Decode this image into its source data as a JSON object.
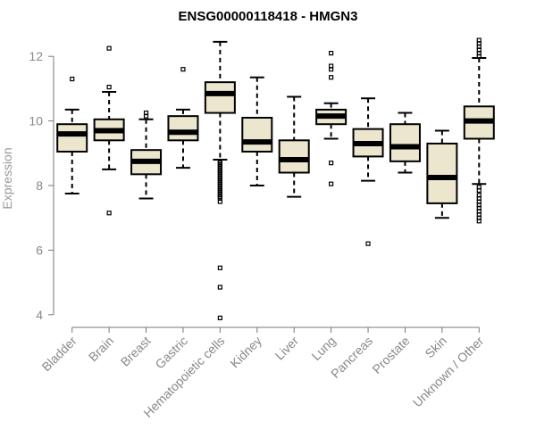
{
  "chart_data": {
    "type": "boxplot",
    "title": "ENSG00000118418 - HMGN3",
    "xlabel": "",
    "ylabel": "Expression",
    "ylim": [
      3.8,
      12.6
    ],
    "yticks": [
      4,
      6,
      8,
      10,
      12
    ],
    "colors": {
      "box_fill": "#ede6cf",
      "stroke": "#000000",
      "axis": "#777777",
      "tick_text": "#888888"
    },
    "categories": [
      "Bladder",
      "Brain",
      "Breast",
      "Gastric",
      "Hematopoietic cells",
      "Kidney",
      "Liver",
      "Lung",
      "Pancreas",
      "Prostate",
      "Skin",
      "Unknown / Other"
    ],
    "boxes": [
      {
        "name": "Bladder",
        "whisker_low": 7.75,
        "q1": 9.05,
        "median": 9.6,
        "q3": 9.9,
        "whisker_high": 10.35,
        "outliers": [
          11.3
        ]
      },
      {
        "name": "Brain",
        "whisker_low": 8.5,
        "q1": 9.4,
        "median": 9.7,
        "q3": 10.05,
        "whisker_high": 10.9,
        "outliers": [
          7.15,
          11.05,
          12.25
        ]
      },
      {
        "name": "Breast",
        "whisker_low": 7.6,
        "q1": 8.35,
        "median": 8.75,
        "q3": 9.1,
        "whisker_high": 10.05,
        "outliers": [
          10.15,
          10.25
        ]
      },
      {
        "name": "Gastric",
        "whisker_low": 8.55,
        "q1": 9.4,
        "median": 9.65,
        "q3": 10.15,
        "whisker_high": 10.35,
        "outliers": [
          11.6
        ]
      },
      {
        "name": "Hematopoietic cells",
        "whisker_low": 8.8,
        "q1": 10.25,
        "median": 10.85,
        "q3": 11.2,
        "whisker_high": 12.45,
        "outliers": [
          8.75,
          8.7,
          8.65,
          8.6,
          8.55,
          8.5,
          8.45,
          8.4,
          8.35,
          8.3,
          8.25,
          8.2,
          8.15,
          8.1,
          8.05,
          8.0,
          7.95,
          7.9,
          7.85,
          7.8,
          7.75,
          7.7,
          7.65,
          7.6,
          7.5,
          5.45,
          4.85,
          3.9
        ]
      },
      {
        "name": "Kidney",
        "whisker_low": 8.0,
        "q1": 9.05,
        "median": 9.35,
        "q3": 10.1,
        "whisker_high": 11.35,
        "outliers": []
      },
      {
        "name": "Liver",
        "whisker_low": 7.65,
        "q1": 8.4,
        "median": 8.8,
        "q3": 9.4,
        "whisker_high": 10.75,
        "outliers": []
      },
      {
        "name": "Lung",
        "whisker_low": 9.45,
        "q1": 9.9,
        "median": 10.15,
        "q3": 10.35,
        "whisker_high": 10.55,
        "outliers": [
          8.05,
          8.7,
          11.35,
          11.6,
          11.7,
          12.1
        ]
      },
      {
        "name": "Pancreas",
        "whisker_low": 8.15,
        "q1": 8.9,
        "median": 9.3,
        "q3": 9.75,
        "whisker_high": 10.7,
        "outliers": [
          6.2
        ]
      },
      {
        "name": "Prostate",
        "whisker_low": 8.4,
        "q1": 8.75,
        "median": 9.2,
        "q3": 9.9,
        "whisker_high": 10.25,
        "outliers": []
      },
      {
        "name": "Skin",
        "whisker_low": 7.0,
        "q1": 7.45,
        "median": 8.25,
        "q3": 9.3,
        "whisker_high": 9.7,
        "outliers": []
      },
      {
        "name": "Unknown / Other",
        "whisker_low": 8.05,
        "q1": 9.45,
        "median": 10.0,
        "q3": 10.45,
        "whisker_high": 11.95,
        "outliers": [
          12.0,
          12.1,
          12.2,
          12.3,
          12.4,
          12.5,
          7.95,
          7.85,
          7.7,
          7.6,
          7.5,
          7.4,
          7.3,
          7.2,
          7.1,
          7.0,
          6.9
        ]
      }
    ]
  }
}
